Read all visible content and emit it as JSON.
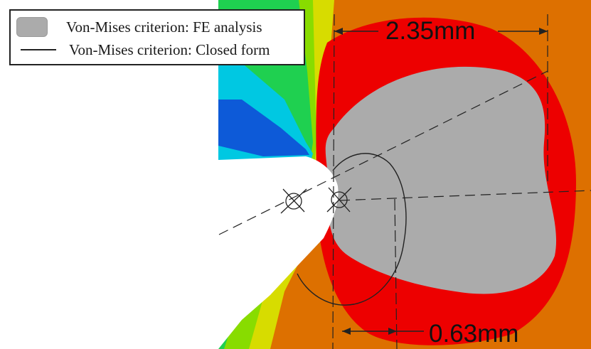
{
  "legend": {
    "items": [
      {
        "label": "Von-Mises criterion: FE analysis",
        "symbol": "gray-filled-region"
      },
      {
        "label": "Von-Mises criterion: Closed form",
        "symbol": "solid-line"
      }
    ]
  },
  "dimensions": {
    "top": "2.35mm",
    "bottom": "0.63mm"
  },
  "colors": {
    "fe_plastic_zone": "#ababab",
    "background": "#ffffff",
    "contour_red": "#ed0000",
    "contour_orange": "#dd7000",
    "contour_yellow": "#d7dc00",
    "contour_lightgreen": "#88dc00",
    "contour_green": "#1fd050",
    "contour_cyan": "#00c8e2",
    "contour_blue": "#0d5ad8",
    "lines": "#222222"
  }
}
